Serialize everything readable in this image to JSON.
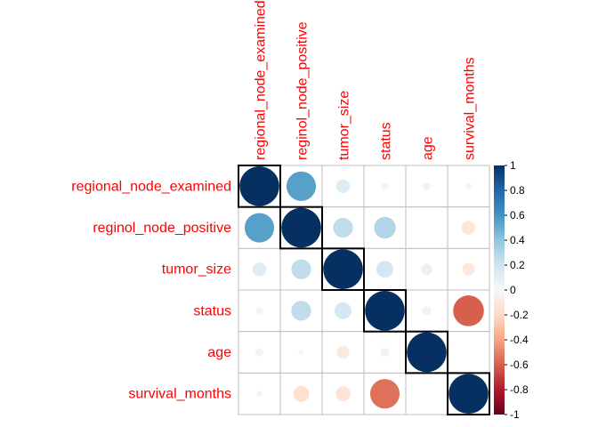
{
  "chart_data": {
    "type": "heatmap",
    "variables": [
      "regional_node_examined",
      "reginol_node_positive",
      "tumor_size",
      "status",
      "age",
      "survival_months"
    ],
    "matrix": [
      [
        1.0,
        0.55,
        0.12,
        0.03,
        0.04,
        0.02
      ],
      [
        0.55,
        1.0,
        0.25,
        0.3,
        0.0,
        -0.12
      ],
      [
        0.12,
        0.25,
        1.0,
        0.18,
        -0.08,
        -0.1
      ],
      [
        0.03,
        0.25,
        0.18,
        1.0,
        0.05,
        -0.6
      ],
      [
        -0.04,
        -0.02,
        -0.1,
        0.05,
        1.0,
        0.0
      ],
      [
        -0.02,
        -0.16,
        -0.14,
        -0.55,
        0.0,
        1.0
      ]
    ],
    "colorbar_ticks": [
      "-1",
      "-0.8",
      "-0.6",
      "-0.4",
      "-0.2",
      "0",
      "0.2",
      "0.4",
      "0.6",
      "0.8",
      "1"
    ],
    "colorbar_range": [
      -1,
      1
    ],
    "label_color": "#ff0000",
    "palette": {
      "negative_end": "#67001f",
      "negative_mid": "#d6604d",
      "light_negative": "#fddbc7",
      "neutral": "#f7f7f7",
      "light_positive": "#d1e5f0",
      "positive_mid": "#4393c3",
      "positive_end": "#053061",
      "grid_color": "#bebebe",
      "highlight_box_color": "#000000"
    }
  }
}
